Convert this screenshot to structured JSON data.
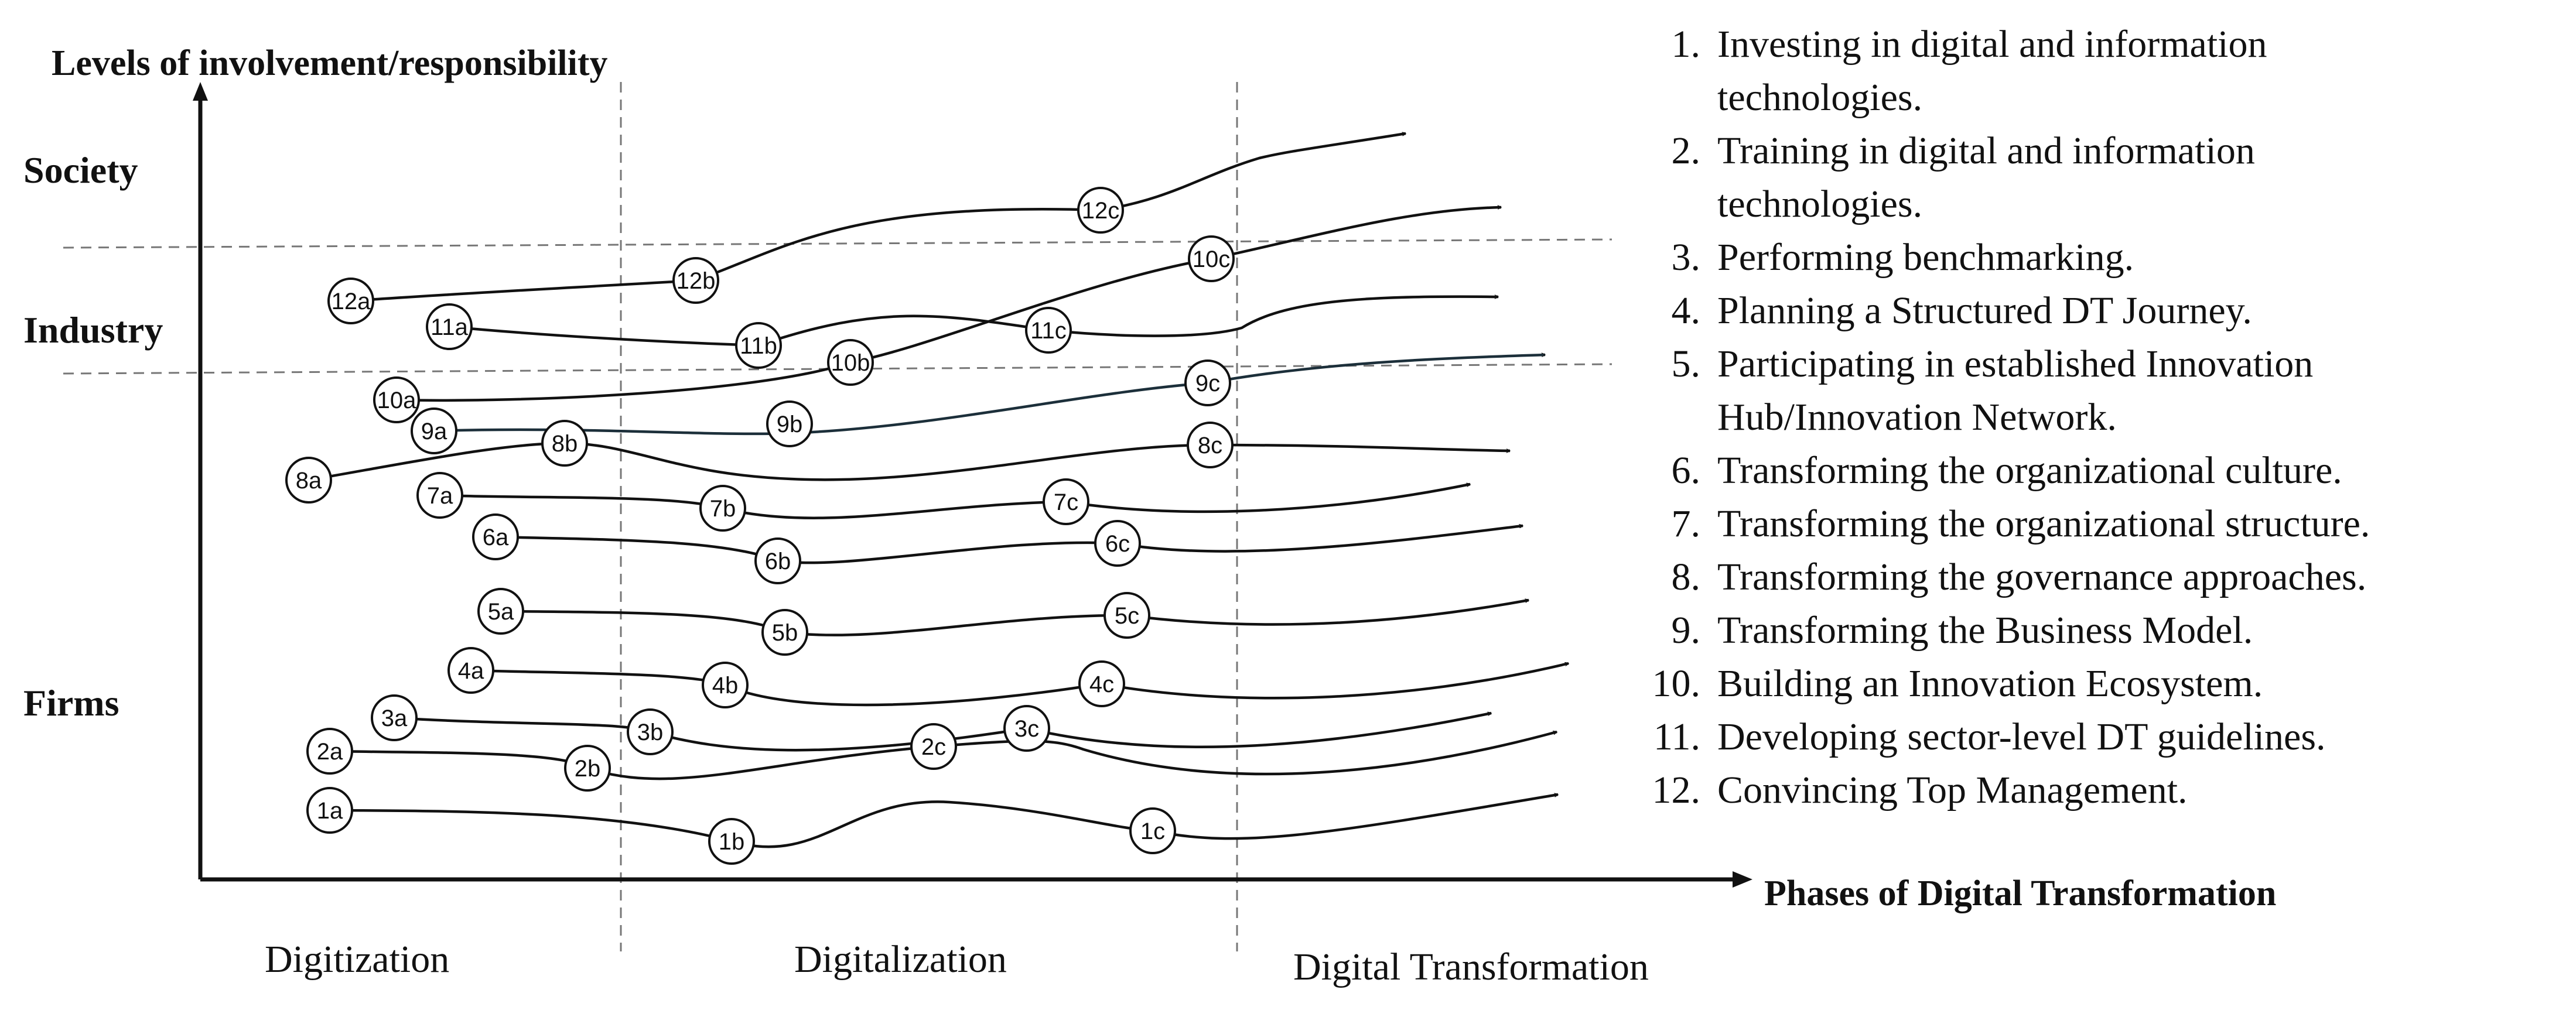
{
  "diagram": {
    "y_axis_title": "Levels of involvement/responsibility",
    "x_axis_title": "Phases of Digital Transformation",
    "levels": [
      "Society",
      "Industry",
      "Firms"
    ],
    "phases": [
      "Digitization",
      "Digitalization",
      "Digital Transformation"
    ],
    "legend": [
      {
        "num": "1.",
        "lines": [
          "Investing in digital and information",
          "technologies."
        ]
      },
      {
        "num": "2.",
        "lines": [
          "Training in digital and information",
          "technologies."
        ]
      },
      {
        "num": "3.",
        "lines": [
          "Performing benchmarking."
        ]
      },
      {
        "num": "4.",
        "lines": [
          "Planning a Structured DT Journey."
        ]
      },
      {
        "num": "5.",
        "lines": [
          "Participating in established Innovation",
          "Hub/Innovation Network."
        ]
      },
      {
        "num": "6.",
        "lines": [
          "Transforming the organizational culture."
        ]
      },
      {
        "num": "7.",
        "lines": [
          "Transforming the organizational structure."
        ]
      },
      {
        "num": "8.",
        "lines": [
          "Transforming the governance approaches."
        ]
      },
      {
        "num": "9.",
        "lines": [
          "Transforming the Business Model."
        ]
      },
      {
        "num": "10.",
        "lines": [
          "Building an Innovation Ecosystem."
        ]
      },
      {
        "num": "11.",
        "lines": [
          "Developing sector-level DT guidelines."
        ]
      },
      {
        "num": "12.",
        "lines": [
          "Convincing Top Management."
        ]
      }
    ],
    "initiatives": [
      {
        "id": "1",
        "nodes": [
          "1a",
          "1b",
          "1c"
        ]
      },
      {
        "id": "2",
        "nodes": [
          "2a",
          "2b",
          "2c"
        ]
      },
      {
        "id": "3",
        "nodes": [
          "3a",
          "3b",
          "3c"
        ]
      },
      {
        "id": "4",
        "nodes": [
          "4a",
          "4b",
          "4c"
        ]
      },
      {
        "id": "5",
        "nodes": [
          "5a",
          "5b",
          "5c"
        ]
      },
      {
        "id": "6",
        "nodes": [
          "6a",
          "6b",
          "6c"
        ]
      },
      {
        "id": "7",
        "nodes": [
          "7a",
          "7b",
          "7c"
        ]
      },
      {
        "id": "8",
        "nodes": [
          "8a",
          "8b",
          "8c"
        ]
      },
      {
        "id": "9",
        "nodes": [
          "9a",
          "9b",
          "9c"
        ]
      },
      {
        "id": "10",
        "nodes": [
          "10a",
          "10b",
          "10c"
        ]
      },
      {
        "id": "11",
        "nodes": [
          "11a",
          "11b",
          "11c"
        ]
      },
      {
        "id": "12",
        "nodes": [
          "12a",
          "12b",
          "12c"
        ]
      }
    ]
  }
}
